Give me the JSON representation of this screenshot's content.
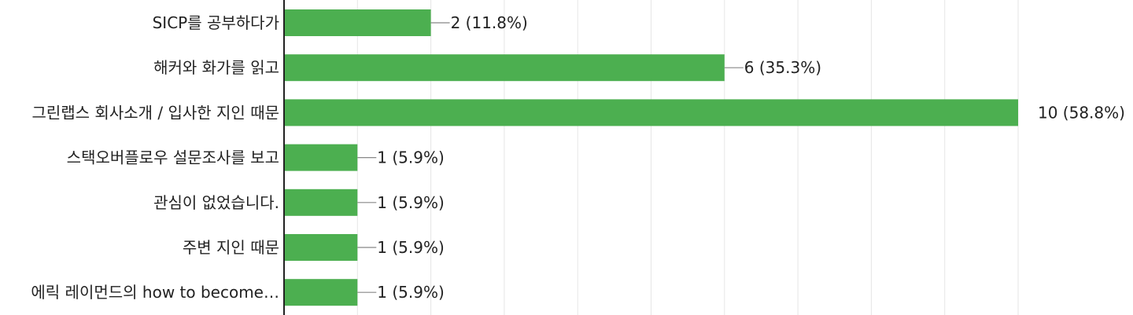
{
  "chart_data": {
    "type": "bar",
    "orientation": "horizontal",
    "categories": [
      "SICP를 공부하다가",
      "해커와 화가를 읽고",
      "그린랩스 회사소개 / 입사한 지인 때문",
      "스택오버플로우 설문조사를 보고",
      "관심이 없었습니다.",
      "주변 지인 때문",
      "에릭 레이먼드의 how to become…"
    ],
    "values": [
      2,
      6,
      10,
      1,
      1,
      1,
      1
    ],
    "value_labels": [
      "2 (11.8%)",
      "6 (35.3%)",
      "10 (58.8%)",
      "1 (5.9%)",
      "1 (5.9%)",
      "1 (5.9%)",
      "1 (5.9%)"
    ],
    "xlim": [
      0,
      10
    ],
    "grid": true,
    "colors": {
      "bar": "#4caf50",
      "axis": "#222222",
      "grid": "#e6e6e6",
      "leader": "#888888"
    }
  }
}
